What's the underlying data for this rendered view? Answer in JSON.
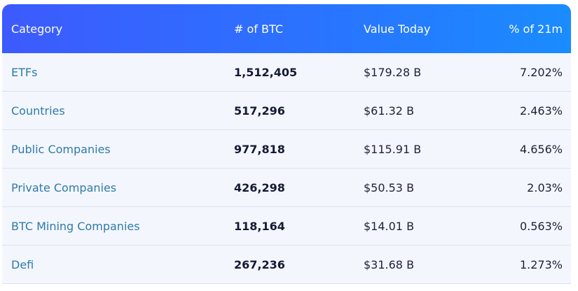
{
  "table": {
    "header": [
      "Category",
      "# of BTC",
      "Value Today",
      "% of 21m"
    ],
    "rows": [
      [
        "ETFs",
        "1,512,405",
        "$179.28 B",
        "7.202%"
      ],
      [
        "Countries",
        "517,296",
        "$61.32 B",
        "2.463%"
      ],
      [
        "Public Companies",
        "977,818",
        "$115.91 B",
        "4.656%"
      ],
      [
        "Private Companies",
        "426,298",
        "$50.53 B",
        "2.03%"
      ],
      [
        "BTC Mining Companies",
        "118,164",
        "$14.01 B",
        "0.563%"
      ],
      [
        "Defi",
        "267,236",
        "$31.68 B",
        "1.273%"
      ]
    ]
  }
}
